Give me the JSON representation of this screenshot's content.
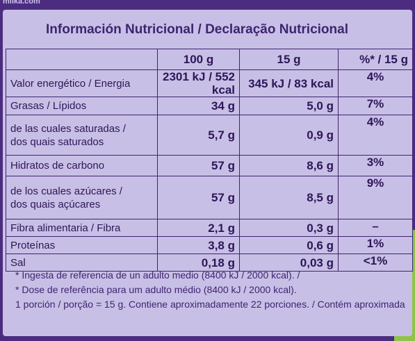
{
  "header": {
    "site": "milka.com",
    "title": "Información Nutricional / Declaração Nutricional"
  },
  "table": {
    "columns": [
      "100 g",
      "15 g",
      "%* / 15 g"
    ],
    "rows": [
      [
        [
          "Valor energético / Energia"
        ],
        "2301 kJ / 552 kcal",
        "345 kJ / 83 kcal",
        "4%"
      ],
      [
        [
          "Grasas / Lípidos"
        ],
        "34 g",
        "5,0 g",
        "7%"
      ],
      [
        [
          "de las cuales saturadas /",
          "dos quais saturados"
        ],
        "5,7 g",
        "0,9 g",
        "4%"
      ],
      [
        [
          "Hidratos de carbono"
        ],
        "57 g",
        "8,6 g",
        "3%"
      ],
      [
        [
          "de los cuales azúcares /",
          "dos quais açúcares"
        ],
        "57 g",
        "8,5 g",
        "9%"
      ],
      [
        [
          "Fibra alimentaria / Fibra"
        ],
        "2,1 g",
        "0,3 g",
        "–"
      ],
      [
        [
          "Proteínas"
        ],
        "3,8 g",
        "0,6 g",
        "1%"
      ],
      [
        [
          "Sal"
        ],
        "0,18 g",
        "0,03 g",
        "<1%"
      ]
    ]
  },
  "footnotes": [
    "* Ingesta de referencia de un adulto medio (8400 kJ / 2000 kcal). /",
    "* Dose de referência para um adulto médio (8400 kJ / 2000 kcal).",
    "1 porción / porção = 15 g. Contiene aproximadamente 22 porciones. / Contém aproximada"
  ]
}
